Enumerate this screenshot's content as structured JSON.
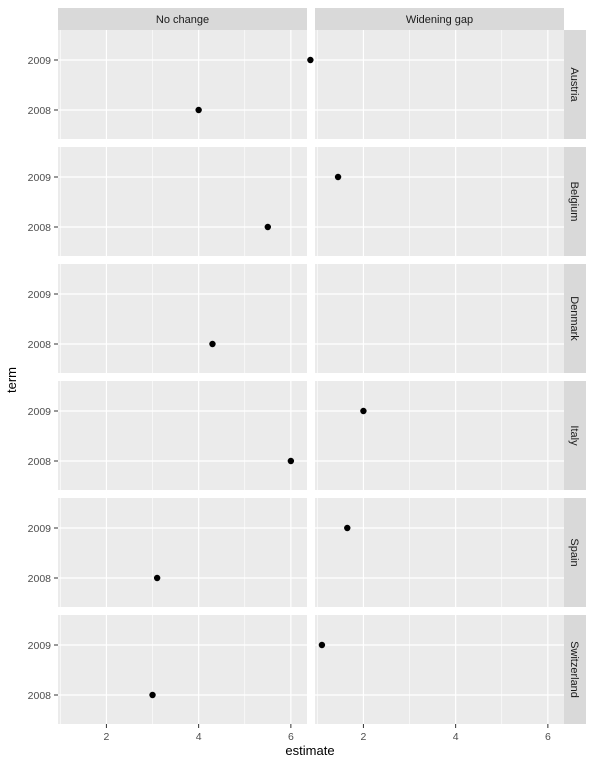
{
  "chart_data": {
    "type": "scatter",
    "title": "",
    "xlabel": "estimate",
    "ylabel": "term",
    "xlim": [
      0.95,
      6.35
    ],
    "x_ticks": [
      2,
      4,
      6
    ],
    "y_categories": [
      "2008",
      "2009"
    ],
    "grid": true,
    "columns": [
      "No change",
      "Widening gap"
    ],
    "rows": [
      "Austria",
      "Belgium",
      "Denmark",
      "Italy",
      "Spain",
      "Switzerland"
    ],
    "colors": {
      "panel": "#ebebeb",
      "strip": "#d9d9d9",
      "grid": "#ffffff",
      "point": "#000000",
      "text": "#4d4d4d"
    },
    "points": [
      {
        "row": "Austria",
        "col": "No change",
        "term": "2008",
        "estimate": 4.0
      },
      {
        "row": "Austria",
        "col": "Widening gap",
        "term": "2009",
        "estimate": 0.85
      },
      {
        "row": "Belgium",
        "col": "No change",
        "term": "2008",
        "estimate": 5.5
      },
      {
        "row": "Belgium",
        "col": "Widening gap",
        "term": "2009",
        "estimate": 1.45
      },
      {
        "row": "Denmark",
        "col": "No change",
        "term": "2008",
        "estimate": 4.3
      },
      {
        "row": "Italy",
        "col": "No change",
        "term": "2008",
        "estimate": 6.0
      },
      {
        "row": "Italy",
        "col": "Widening gap",
        "term": "2009",
        "estimate": 2.0
      },
      {
        "row": "Spain",
        "col": "No change",
        "term": "2008",
        "estimate": 3.1
      },
      {
        "row": "Spain",
        "col": "Widening gap",
        "term": "2009",
        "estimate": 1.65
      },
      {
        "row": "Switzerland",
        "col": "No change",
        "term": "2008",
        "estimate": 3.0
      },
      {
        "row": "Switzerland",
        "col": "Widening gap",
        "term": "2009",
        "estimate": 1.1
      }
    ]
  }
}
